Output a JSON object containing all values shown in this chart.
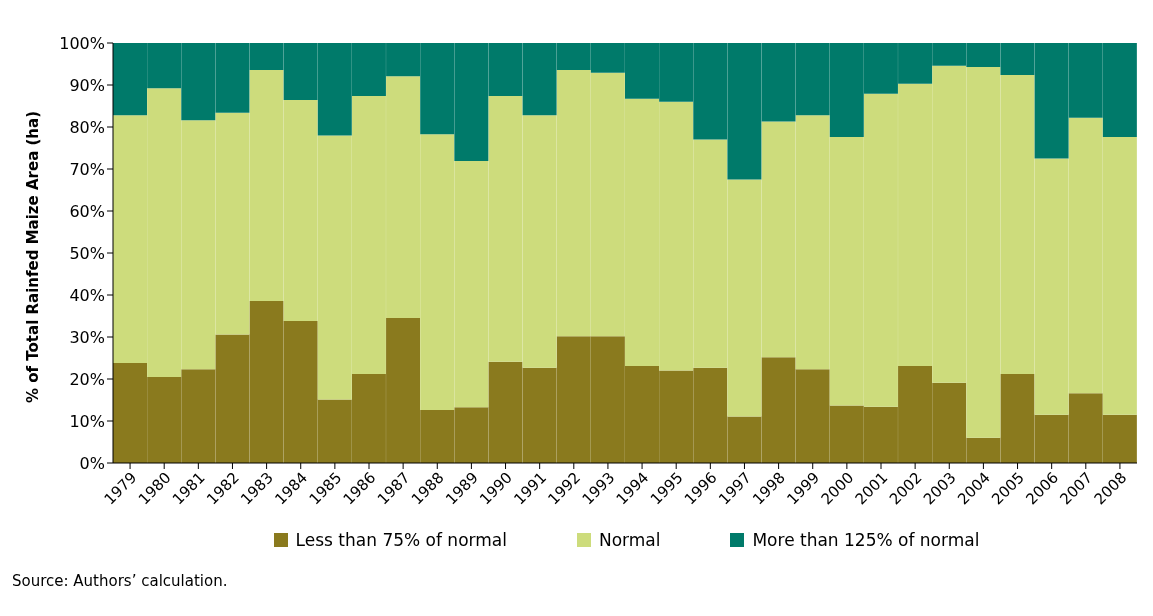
{
  "chart_data": {
    "type": "bar",
    "stacked": true,
    "ylabel": "% of Total Rainfed Maize Area (ha)",
    "categories": [
      "1979",
      "1980",
      "1981",
      "1982",
      "1983",
      "1984",
      "1985",
      "1986",
      "1987",
      "1988",
      "1989",
      "1990",
      "1991",
      "1992",
      "1993",
      "1994",
      "1995",
      "1996",
      "1997",
      "1998",
      "1999",
      "2000",
      "2001",
      "2002",
      "2003",
      "2004",
      "2005",
      "2006",
      "2007",
      "2008"
    ],
    "series": [
      {
        "name": "Less than 75% of normal",
        "color": "#8a7a1e",
        "values": [
          23.8,
          20.5,
          22.3,
          30.6,
          38.6,
          33.8,
          15.1,
          21.2,
          34.5,
          12.6,
          13.3,
          24.1,
          22.7,
          30.2,
          30.2,
          23.1,
          22.0,
          22.7,
          11.1,
          25.2,
          22.3,
          13.7,
          13.4,
          23.1,
          19.1,
          6.0,
          21.2,
          11.5,
          16.6,
          11.5
        ]
      },
      {
        "name": "Normal",
        "color": "#cddc7c",
        "values": [
          59.0,
          68.7,
          59.3,
          52.8,
          55.0,
          52.6,
          62.9,
          66.2,
          57.6,
          65.7,
          58.6,
          63.3,
          60.1,
          63.4,
          62.7,
          63.6,
          64.0,
          54.3,
          56.4,
          56.1,
          60.5,
          63.9,
          74.5,
          67.2,
          75.5,
          88.3,
          71.2,
          61.0,
          65.6,
          66.1
        ]
      },
      {
        "name": "More than 125% of normal",
        "color": "#007a6a",
        "values": [
          17.2,
          10.8,
          18.4,
          16.6,
          6.4,
          13.6,
          22.0,
          12.6,
          7.9,
          21.7,
          28.1,
          12.6,
          17.2,
          6.4,
          7.1,
          13.3,
          14.0,
          23.0,
          32.5,
          18.7,
          17.2,
          22.4,
          12.1,
          9.7,
          5.4,
          5.7,
          7.6,
          27.5,
          17.8,
          22.4
        ]
      }
    ],
    "ylim": [
      0,
      100
    ],
    "yticks": [
      {
        "value": 0,
        "label": "0%"
      },
      {
        "value": 10,
        "label": "10%"
      },
      {
        "value": 20,
        "label": "20%"
      },
      {
        "value": 30,
        "label": "30%"
      },
      {
        "value": 40,
        "label": "40%"
      },
      {
        "value": 50,
        "label": "50%"
      },
      {
        "value": 60,
        "label": "60%"
      },
      {
        "value": 70,
        "label": "70%"
      },
      {
        "value": 80,
        "label": "80%"
      },
      {
        "value": 90,
        "label": "90%"
      },
      {
        "value": 100,
        "label": "100%"
      }
    ],
    "legend": "bottom",
    "annotations": [
      "Source: Authors’ calculation."
    ]
  }
}
